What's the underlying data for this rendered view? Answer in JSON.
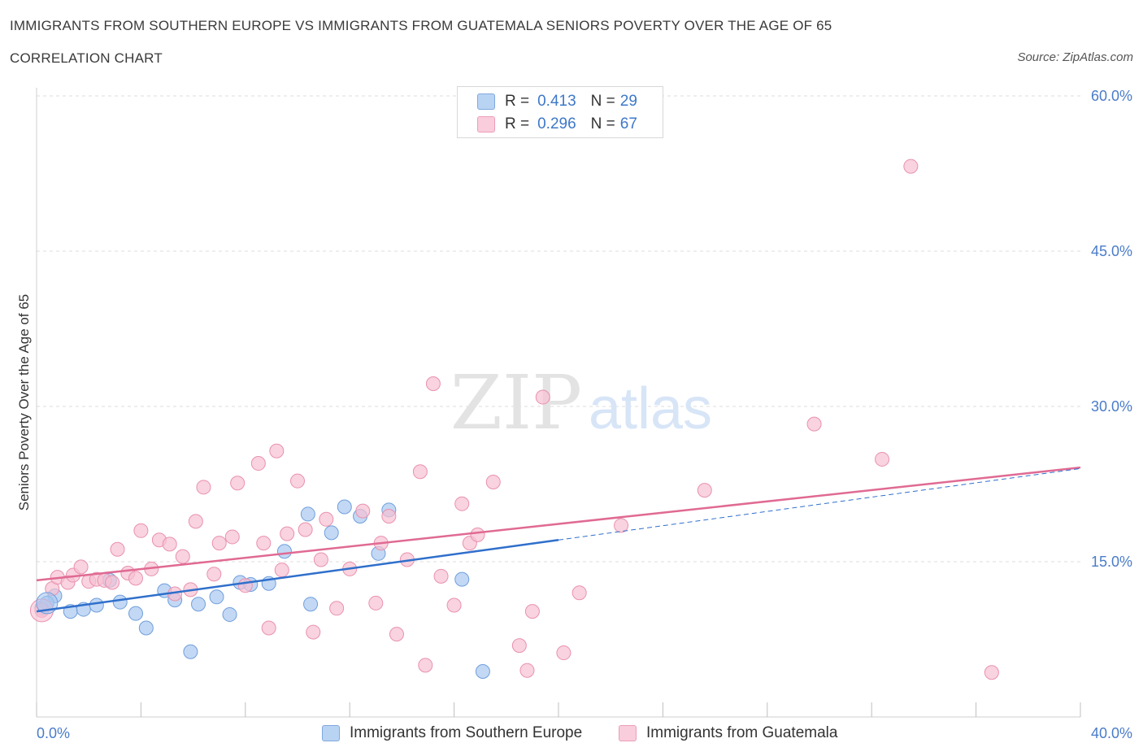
{
  "header": {
    "title": "IMMIGRANTS FROM SOUTHERN EUROPE VS IMMIGRANTS FROM GUATEMALA SENIORS POVERTY OVER THE AGE OF 65",
    "subtitle": "CORRELATION CHART",
    "source": "Source: ZipAtlas.com"
  },
  "legend": {
    "rows": [
      {
        "r_label": "R =",
        "r_value": "0.413",
        "n_label": "N =",
        "n_value": "29"
      },
      {
        "r_label": "R =",
        "r_value": "0.296",
        "n_label": "N =",
        "n_value": "67"
      }
    ]
  },
  "watermark": {
    "zip": "ZIP",
    "atlas": "atlas"
  },
  "chart_data": {
    "type": "scatter",
    "title": "IMMIGRANTS FROM SOUTHERN EUROPE VS IMMIGRANTS FROM GUATEMALA SENIORS POVERTY OVER THE AGE OF 65",
    "ylabel": "Seniors Poverty Over the Age of 65",
    "xlabel": "",
    "xlim": [
      0,
      40
    ],
    "ylim": [
      0,
      60
    ],
    "x_tick_labels": [
      "0.0%",
      "40.0%"
    ],
    "y_ticks": [
      15,
      30,
      45,
      60
    ],
    "y_tick_labels": [
      "15.0%",
      "30.0%",
      "45.0%",
      "60.0%"
    ],
    "grid": "horizontal dashed",
    "legend_placement": "bottom",
    "series": [
      {
        "name": "Immigrants from Southern Europe",
        "color": "#a9c8f0",
        "stroke": "#6f9fdc",
        "trend_color": "#2f6fcb",
        "trend": {
          "x0": 0,
          "y0": 10.2,
          "x1": 20,
          "y1": 17.1,
          "dashed_to_x": 40,
          "dashed_to_y": 24.0
        },
        "points": [
          [
            0.2,
            10.5
          ],
          [
            0.7,
            11.7
          ],
          [
            1.3,
            10.2
          ],
          [
            1.8,
            10.4
          ],
          [
            2.3,
            10.8
          ],
          [
            2.8,
            13.2
          ],
          [
            3.2,
            11.1
          ],
          [
            3.8,
            10.0
          ],
          [
            4.2,
            8.6
          ],
          [
            4.9,
            12.2
          ],
          [
            5.3,
            11.3
          ],
          [
            5.9,
            6.3
          ],
          [
            6.2,
            10.9
          ],
          [
            6.9,
            11.6
          ],
          [
            7.4,
            9.9
          ],
          [
            7.8,
            13.0
          ],
          [
            8.2,
            12.8
          ],
          [
            8.9,
            12.9
          ],
          [
            9.5,
            16.0
          ],
          [
            10.4,
            19.6
          ],
          [
            10.5,
            10.9
          ],
          [
            11.3,
            17.8
          ],
          [
            11.8,
            20.3
          ],
          [
            12.4,
            19.4
          ],
          [
            13.1,
            15.8
          ],
          [
            13.5,
            20.0
          ],
          [
            16.3,
            13.3
          ],
          [
            17.1,
            4.4
          ],
          [
            0.4,
            11.0
          ]
        ]
      },
      {
        "name": "Immigrants from Guatemala",
        "color": "#f7c0d2",
        "stroke": "#e991ae",
        "trend_color": "#e06a93",
        "trend": {
          "x0": 0,
          "y0": 13.2,
          "x1": 40,
          "y1": 24.1
        },
        "points": [
          [
            0.2,
            10.3
          ],
          [
            0.6,
            12.4
          ],
          [
            0.8,
            13.5
          ],
          [
            1.2,
            13.0
          ],
          [
            1.4,
            13.7
          ],
          [
            1.7,
            14.5
          ],
          [
            2.0,
            13.1
          ],
          [
            2.3,
            13.3
          ],
          [
            2.6,
            13.2
          ],
          [
            2.9,
            13.0
          ],
          [
            3.1,
            16.2
          ],
          [
            3.5,
            13.9
          ],
          [
            3.8,
            13.4
          ],
          [
            4.0,
            18.0
          ],
          [
            4.4,
            14.3
          ],
          [
            4.7,
            17.1
          ],
          [
            5.1,
            16.7
          ],
          [
            5.3,
            11.9
          ],
          [
            5.6,
            15.5
          ],
          [
            5.9,
            12.3
          ],
          [
            6.1,
            18.9
          ],
          [
            6.4,
            22.2
          ],
          [
            6.8,
            13.8
          ],
          [
            7.0,
            16.8
          ],
          [
            7.5,
            17.4
          ],
          [
            7.7,
            22.6
          ],
          [
            8.0,
            12.7
          ],
          [
            8.5,
            24.5
          ],
          [
            8.7,
            16.8
          ],
          [
            8.9,
            8.6
          ],
          [
            9.2,
            25.7
          ],
          [
            9.4,
            14.2
          ],
          [
            9.6,
            17.7
          ],
          [
            10.0,
            22.8
          ],
          [
            10.3,
            18.1
          ],
          [
            10.6,
            8.2
          ],
          [
            10.9,
            15.2
          ],
          [
            11.1,
            19.1
          ],
          [
            11.5,
            10.5
          ],
          [
            12.0,
            14.3
          ],
          [
            12.5,
            19.9
          ],
          [
            13.0,
            11.0
          ],
          [
            13.2,
            16.8
          ],
          [
            13.5,
            19.4
          ],
          [
            13.8,
            8.0
          ],
          [
            14.2,
            15.2
          ],
          [
            14.7,
            23.7
          ],
          [
            14.9,
            5.0
          ],
          [
            15.2,
            32.2
          ],
          [
            15.5,
            13.6
          ],
          [
            16.0,
            10.8
          ],
          [
            16.3,
            20.6
          ],
          [
            16.6,
            16.8
          ],
          [
            16.9,
            17.6
          ],
          [
            17.5,
            22.7
          ],
          [
            18.5,
            6.9
          ],
          [
            18.8,
            4.5
          ],
          [
            19.0,
            10.2
          ],
          [
            19.4,
            30.9
          ],
          [
            20.2,
            6.2
          ],
          [
            20.8,
            12.0
          ],
          [
            22.4,
            18.5
          ],
          [
            25.6,
            21.9
          ],
          [
            29.8,
            28.3
          ],
          [
            32.4,
            24.9
          ],
          [
            33.5,
            53.2
          ],
          [
            36.6,
            4.3
          ]
        ]
      }
    ]
  }
}
